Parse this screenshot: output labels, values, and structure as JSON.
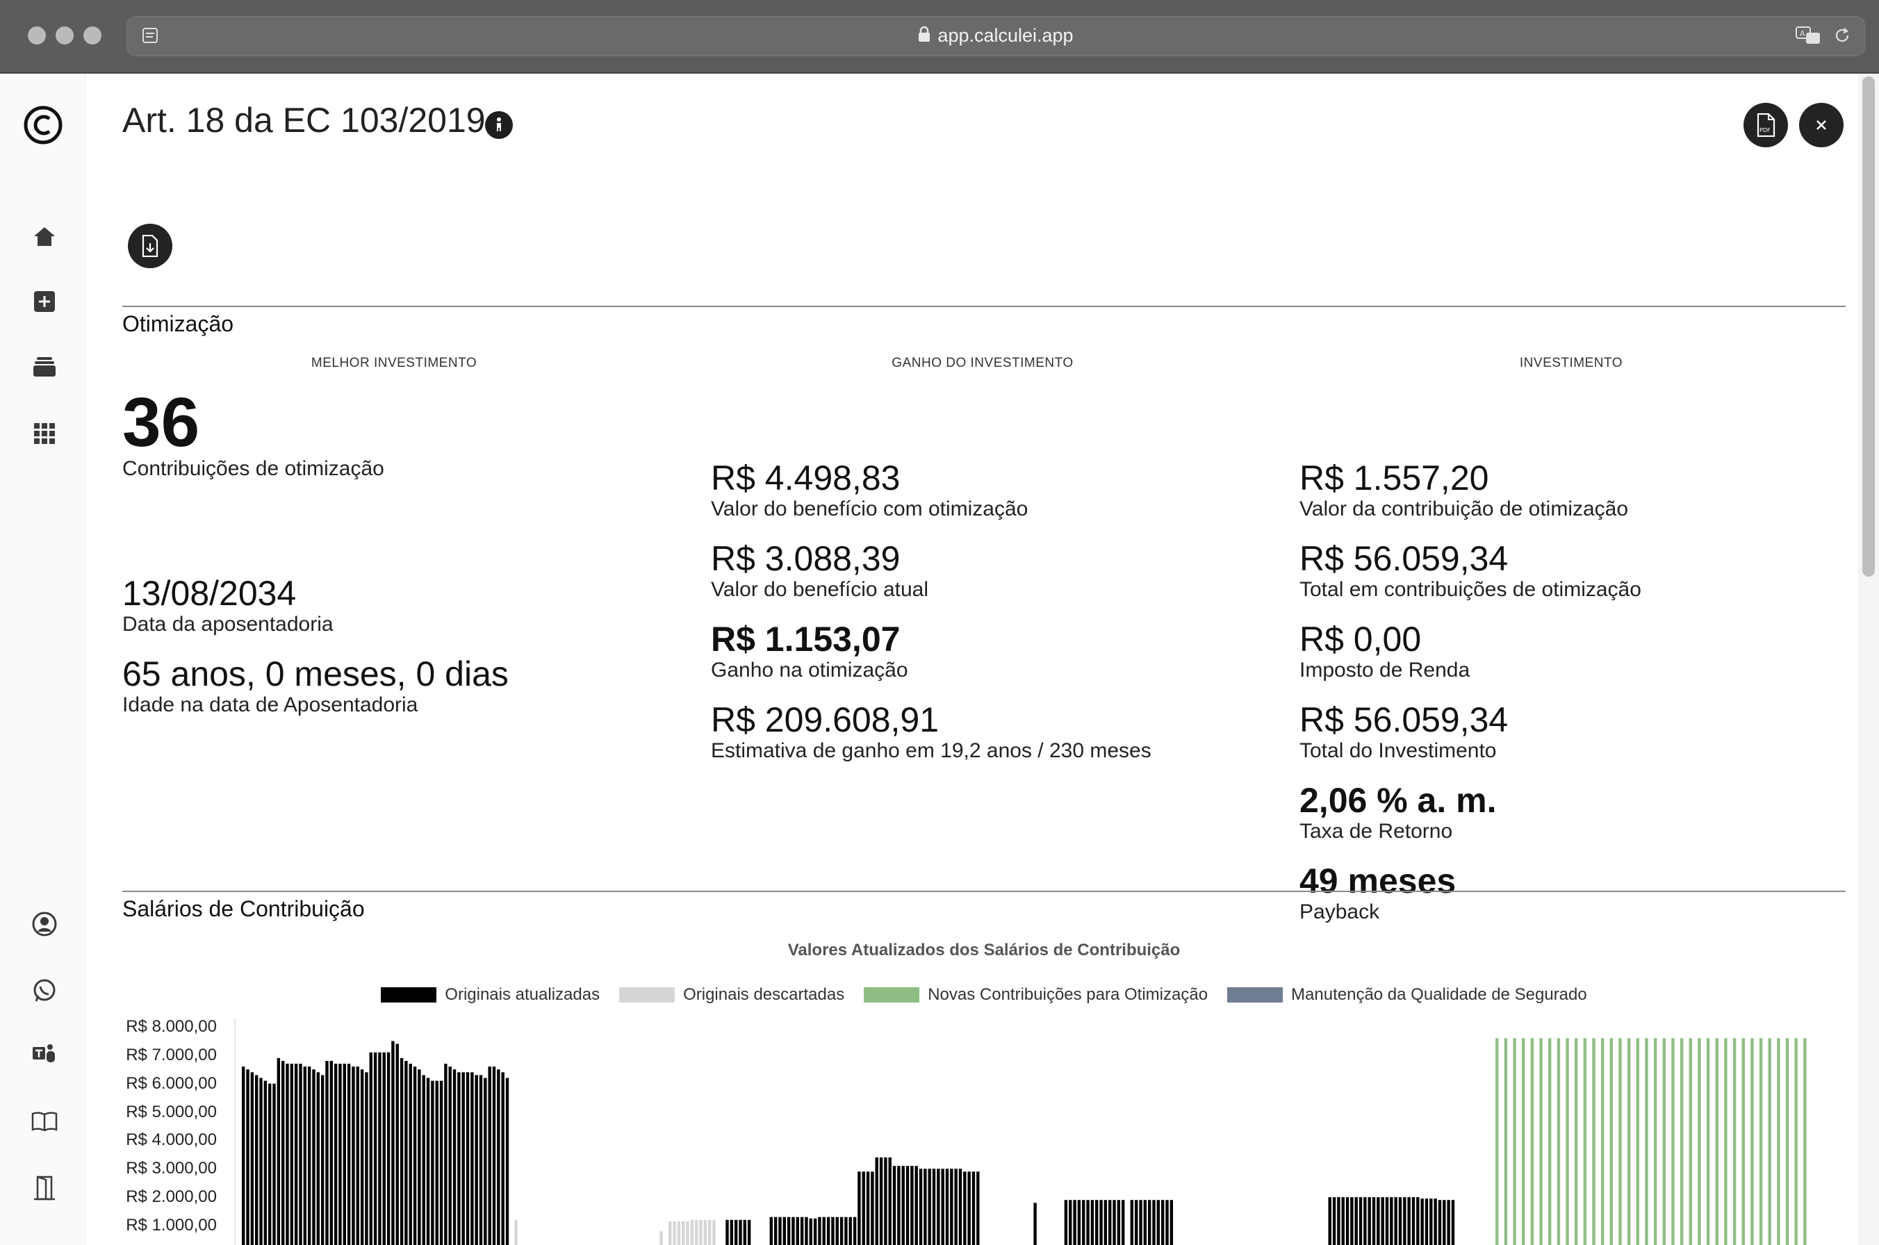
{
  "browser": {
    "url": "app.calculei.app"
  },
  "page": {
    "title": "Art. 18 da EC 103/2019"
  },
  "otimizacao": {
    "section_title": "Otimização",
    "col1": {
      "header": "MELHOR INVESTIMENTO",
      "items": [
        {
          "value": "36",
          "label": "Contribuições de otimização"
        },
        {
          "value": "13/08/2034",
          "label": "Data da aposentadoria"
        },
        {
          "value": "65 anos, 0 meses, 0 dias",
          "label": "Idade na data de Aposentadoria"
        }
      ]
    },
    "col2": {
      "header": "GANHO DO INVESTIMENTO",
      "items": [
        {
          "value": "R$ 4.498,83",
          "label": "Valor do benefício com otimização"
        },
        {
          "value": "R$ 3.088,39",
          "label": "Valor do benefício atual"
        },
        {
          "value": "R$ 1.153,07",
          "label": "Ganho na otimização"
        },
        {
          "value": "R$ 209.608,91",
          "label": "Estimativa de ganho em 19,2 anos / 230 meses"
        }
      ]
    },
    "col3": {
      "header": "INVESTIMENTO",
      "items": [
        {
          "value": "R$ 1.557,20",
          "label": "Valor da contribuição de otimização"
        },
        {
          "value": "R$ 56.059,34",
          "label": "Total em contribuições de otimização"
        },
        {
          "value": "R$ 0,00",
          "label": "Imposto de Renda"
        },
        {
          "value": "R$ 56.059,34",
          "label": "Total do Investimento"
        },
        {
          "value": "2,06 % a. m.",
          "label": "Taxa de Retorno"
        },
        {
          "value": "49 meses",
          "label": "Payback"
        }
      ]
    }
  },
  "salarios": {
    "section_title": "Salários de Contribuição"
  },
  "icons": {
    "logo": "calculei-logo-icon",
    "nav": [
      "home-icon",
      "plus-square-icon",
      "stack-icon",
      "grid-icon"
    ],
    "bottom": [
      "user-circle-icon",
      "whatsapp-icon",
      "teams-icon",
      "book-icon",
      "exit-door-icon"
    ]
  },
  "chart_data": {
    "type": "bar",
    "title": "Valores Atualizados dos Salários de Contribuição",
    "y_tick_labels": [
      "R$ 8.000,00",
      "R$ 7.000,00",
      "R$ 6.000,00",
      "R$ 5.000,00",
      "R$ 4.000,00",
      "R$ 3.000,00",
      "R$ 2.000,00",
      "R$ 1.000,00"
    ],
    "ylim": [
      0,
      8000
    ],
    "legend_position": "top-center",
    "series": [
      {
        "name": "Originais atualizadas",
        "color": "#000000",
        "groups": [
          {
            "start": 0,
            "values": [
              6600,
              6500,
              6400,
              6300,
              6200,
              6100,
              6000,
              6000,
              6900,
              6800,
              6700,
              6700,
              6700,
              6700,
              6600,
              6600,
              6500,
              6400,
              6300,
              6800,
              6800,
              6700,
              6700,
              6700,
              6700,
              6600,
              6600,
              6500,
              6400,
              7100,
              7100,
              7100,
              7100,
              7100,
              7500,
              7400,
              6900,
              6800,
              6700,
              6600,
              6500,
              6300,
              6200,
              6100,
              6100,
              6100,
              6700,
              6600,
              6500,
              6400,
              6400,
              6400,
              6400,
              6300,
              6300,
              6200,
              6600,
              6600,
              6500,
              6400,
              6200
            ]
          },
          {
            "start": 110,
            "values": [
              1200,
              1200,
              1200,
              1200,
              1200,
              1200
            ]
          },
          {
            "start": 120,
            "values": [
              1300,
              1300,
              1300,
              1300,
              1300,
              1300,
              1300,
              1300,
              1300,
              1250,
              1250,
              1300,
              1300,
              1300,
              1300,
              1300,
              1300,
              1300,
              1300,
              1300
            ]
          },
          {
            "start": 140,
            "values": [
              2900,
              2900,
              2900,
              2900,
              3400,
              3400,
              3400,
              3400,
              3100,
              3100,
              3100,
              3100,
              3100,
              3100,
              3000,
              3000,
              3000,
              3000,
              3000,
              3000,
              3000,
              3000,
              3000,
              3000,
              2900,
              2900,
              2900,
              2900
            ]
          },
          {
            "start": 180,
            "values": [
              1800
            ]
          },
          {
            "start": 187,
            "values": [
              1900,
              1900,
              1900,
              1900,
              1900,
              1900,
              1900,
              1900,
              1900,
              1900,
              1900,
              1900,
              1900,
              1900
            ]
          },
          {
            "start": 202,
            "values": [
              1900,
              1900,
              1900,
              1900,
              1900,
              1900,
              1900,
              1900,
              1900,
              1900
            ]
          },
          {
            "start": 247,
            "values": [
              2000,
              2000,
              2000,
              2000,
              2000,
              2000,
              2000,
              2000,
              2000,
              2000,
              2000,
              2000,
              2000,
              2000,
              2000,
              2000,
              2000,
              2000,
              2000,
              2000,
              2000,
              1950,
              1950,
              1950,
              1950,
              1900,
              1900,
              1900,
              1900
            ]
          }
        ]
      },
      {
        "name": "Originais descartadas",
        "color": "#d6d6d6",
        "groups": [
          {
            "start": 62,
            "values": [
              1200
            ]
          },
          {
            "start": 95,
            "values": [
              800
            ]
          },
          {
            "start": 97,
            "values": [
              1150,
              1150,
              1150,
              1150,
              1150,
              1200,
              1200,
              1200,
              1200,
              1200,
              1200
            ]
          }
        ]
      },
      {
        "name": "Novas Contribuições para Otimização",
        "color": "#8fbe85",
        "groups": [
          {
            "start": 285,
            "step": 2,
            "values": [
              7600,
              7600,
              7600,
              7600,
              7600,
              7600,
              7600,
              7600,
              7600,
              7600,
              7600,
              7600,
              7600,
              7600,
              7600,
              7600,
              7600,
              7600,
              7600,
              7600,
              7600,
              7600,
              7600,
              7600,
              7600,
              7600,
              7600,
              7600,
              7600,
              7600,
              7600,
              7600,
              7600,
              7600,
              7600,
              7600
            ]
          }
        ]
      },
      {
        "name": "Manutenção da Qualidade de Segurado",
        "color": "#6e7d92",
        "groups": []
      }
    ]
  }
}
